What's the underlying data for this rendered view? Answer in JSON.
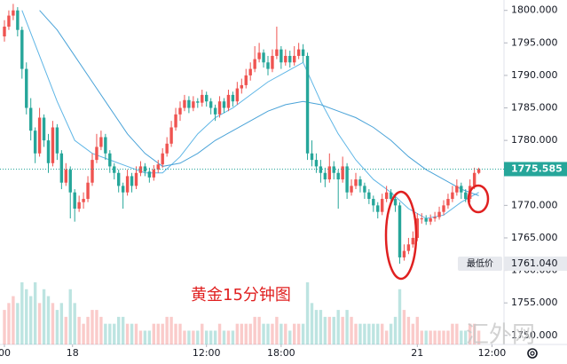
{
  "chart_data": {
    "type": "candlestick",
    "annotation": "黄金15分钟图",
    "watermark": "汇外网",
    "up_color": "#ef5350",
    "down_color": "#26a69a",
    "open": [
      1796.0,
      1797.5,
      1799.2,
      1800.0,
      1797.0,
      1791.0,
      1785.0,
      1781.5,
      1778.0,
      1783.5,
      1780.0,
      1776.5,
      1782.0,
      1778.0,
      1773.5,
      1775.5,
      1772.0,
      1769.5,
      1770.5,
      1771.0,
      1773.5,
      1777.0,
      1779.0,
      1780.5,
      1778.0,
      1776.0,
      1775.0,
      1773.0,
      1772.0,
      1774.5,
      1773.0,
      1775.0,
      1776.0,
      1775.2,
      1774.3,
      1775.5,
      1776.3,
      1778.0,
      1779.5,
      1782.0,
      1784.0,
      1785.0,
      1786.2,
      1785.0,
      1786.0,
      1785.8,
      1787.0,
      1786.0,
      1785.0,
      1784.0,
      1786.0,
      1785.0,
      1787.0,
      1786.0,
      1788.0,
      1788.5,
      1790.0,
      1791.0,
      1792.5,
      1793.5,
      1792.0,
      1791.0,
      1793.0,
      1794.0,
      1792.0,
      1793.0,
      1792.0,
      1793.0,
      1794.0,
      1793.0,
      1778.0,
      1777.0,
      1776.0,
      1775.0,
      1774.0,
      1776.0,
      1775.0,
      1774.0,
      1776.0,
      1772.0,
      1773.0,
      1774.0,
      1773.0,
      1772.0,
      1771.0,
      1770.0,
      1769.0,
      1771.0,
      1772.0,
      1771.0,
      1770.0,
      1762.0,
      1763.0,
      1764.0,
      1765.0,
      1768.0,
      1768.0,
      1767.5,
      1768.0,
      1768.2,
      1769.0,
      1770.0,
      1771.0,
      1772.0,
      1773.0,
      1772.0,
      1771.0,
      1773.0,
      1775.0
    ],
    "high": [
      1798.5,
      1800.0,
      1801.0,
      1800.5,
      1797.5,
      1792.0,
      1786.5,
      1782.0,
      1785.0,
      1784.0,
      1781.0,
      1783.0,
      1782.5,
      1778.5,
      1776.5,
      1776.0,
      1772.5,
      1771.5,
      1772.0,
      1774.5,
      1778.0,
      1781.0,
      1781.5,
      1781.0,
      1778.5,
      1776.5,
      1775.5,
      1773.5,
      1775.5,
      1775.0,
      1776.0,
      1776.8,
      1776.5,
      1775.8,
      1776.2,
      1777.0,
      1778.8,
      1780.5,
      1783.0,
      1785.0,
      1786.0,
      1787.0,
      1786.8,
      1786.8,
      1786.5,
      1787.8,
      1787.5,
      1786.5,
      1785.5,
      1786.8,
      1786.5,
      1787.8,
      1787.5,
      1789.0,
      1789.5,
      1791.0,
      1792.0,
      1794.5,
      1795.0,
      1794.0,
      1793.0,
      1794.0,
      1797.5,
      1794.5,
      1794.0,
      1793.8,
      1794.5,
      1795.0,
      1794.8,
      1793.5,
      1780.0,
      1778.0,
      1777.0,
      1775.8,
      1778.0,
      1776.8,
      1775.5,
      1777.5,
      1776.5,
      1774.0,
      1775.0,
      1774.5,
      1773.5,
      1772.5,
      1771.5,
      1770.5,
      1771.8,
      1773.0,
      1772.5,
      1771.5,
      1770.5,
      1764.0,
      1765.0,
      1766.0,
      1768.8,
      1768.8,
      1768.5,
      1768.6,
      1769.0,
      1769.8,
      1770.8,
      1771.8,
      1773.0,
      1774.0,
      1773.5,
      1772.5,
      1774.0,
      1775.8,
      1775.8
    ],
    "low": [
      1795.2,
      1797.0,
      1798.5,
      1796.0,
      1789.5,
      1784.0,
      1780.0,
      1776.5,
      1777.5,
      1779.0,
      1775.0,
      1776.0,
      1777.0,
      1772.5,
      1773.0,
      1768.0,
      1767.5,
      1769.0,
      1769.5,
      1770.5,
      1773.0,
      1776.5,
      1778.5,
      1777.0,
      1775.0,
      1774.0,
      1772.0,
      1769.5,
      1771.5,
      1772.0,
      1772.5,
      1774.5,
      1774.5,
      1773.5,
      1773.8,
      1775.0,
      1775.8,
      1777.5,
      1779.0,
      1781.5,
      1783.0,
      1784.5,
      1784.2,
      1784.5,
      1785.0,
      1785.2,
      1785.2,
      1784.0,
      1783.0,
      1783.5,
      1784.2,
      1784.5,
      1785.2,
      1785.5,
      1787.2,
      1788.0,
      1789.2,
      1790.5,
      1792.0,
      1791.2,
      1790.0,
      1790.5,
      1792.5,
      1791.0,
      1791.5,
      1791.2,
      1791.5,
      1792.5,
      1792.0,
      1777.0,
      1776.0,
      1775.0,
      1773.5,
      1772.8,
      1773.5,
      1774.0,
      1769.5,
      1773.5,
      1771.0,
      1771.5,
      1772.5,
      1772.0,
      1771.0,
      1770.2,
      1769.0,
      1768.0,
      1768.5,
      1770.5,
      1770.0,
      1769.0,
      1761.04,
      1761.5,
      1762.5,
      1763.5,
      1764.5,
      1767.2,
      1767.0,
      1767.0,
      1767.5,
      1767.8,
      1768.5,
      1769.5,
      1770.5,
      1771.5,
      1771.0,
      1770.5,
      1770.5,
      1772.5,
      1774.8
    ],
    "close": [
      1797.5,
      1799.2,
      1800.0,
      1797.0,
      1791.0,
      1785.0,
      1781.5,
      1778.0,
      1783.5,
      1780.0,
      1776.5,
      1782.0,
      1778.0,
      1773.5,
      1775.5,
      1772.0,
      1769.5,
      1770.5,
      1771.0,
      1773.5,
      1777.0,
      1779.0,
      1780.5,
      1778.0,
      1776.0,
      1775.0,
      1773.0,
      1772.0,
      1774.5,
      1773.0,
      1775.0,
      1776.0,
      1775.2,
      1774.3,
      1775.5,
      1776.3,
      1778.0,
      1779.5,
      1782.0,
      1784.0,
      1785.0,
      1786.2,
      1785.0,
      1786.0,
      1785.8,
      1787.0,
      1786.0,
      1785.0,
      1784.0,
      1786.0,
      1785.0,
      1787.0,
      1786.0,
      1788.0,
      1788.5,
      1790.0,
      1791.0,
      1792.5,
      1793.5,
      1792.0,
      1791.0,
      1793.0,
      1794.0,
      1792.0,
      1793.0,
      1792.0,
      1793.0,
      1794.0,
      1793.0,
      1778.0,
      1777.0,
      1776.0,
      1775.0,
      1774.0,
      1776.0,
      1775.0,
      1774.0,
      1776.0,
      1772.0,
      1773.0,
      1774.0,
      1773.0,
      1772.0,
      1771.0,
      1770.0,
      1769.0,
      1771.0,
      1772.0,
      1771.0,
      1770.0,
      1762.0,
      1763.0,
      1764.0,
      1765.0,
      1768.0,
      1768.0,
      1767.5,
      1768.0,
      1768.2,
      1769.0,
      1770.0,
      1771.0,
      1772.0,
      1773.0,
      1772.0,
      1771.0,
      1773.0,
      1775.0,
      1775.585
    ],
    "volume": [
      5,
      6,
      7,
      6,
      9,
      8,
      7,
      9,
      6,
      8,
      7,
      6,
      5,
      6,
      4,
      8,
      6,
      4,
      3,
      4,
      5,
      5,
      4,
      3,
      3,
      3,
      4,
      4,
      3,
      3,
      3,
      2,
      2,
      2,
      3,
      3,
      3,
      4,
      4,
      3,
      3,
      2,
      2,
      2,
      2,
      3,
      2,
      2,
      2,
      3,
      2,
      2,
      2,
      3,
      3,
      3,
      3,
      4,
      4,
      3,
      3,
      3,
      4,
      3,
      3,
      2,
      3,
      3,
      3,
      9,
      6,
      5,
      5,
      4,
      4,
      4,
      5,
      4,
      5,
      4,
      3,
      3,
      3,
      3,
      3,
      3,
      3,
      2,
      3,
      4,
      8,
      5,
      4,
      3,
      4,
      2,
      2,
      2,
      2,
      2,
      2,
      2,
      3,
      3,
      2,
      2,
      3,
      3,
      2
    ],
    "ma_series": [
      {
        "name": "MA fast",
        "color": "#5fb6e6",
        "x": [
          4,
          8,
          12,
          16,
          20,
          24,
          28,
          32,
          36,
          40,
          44,
          48,
          52,
          56,
          60,
          64,
          68,
          72,
          76,
          80,
          84,
          88,
          92,
          96,
          100,
          104,
          108
        ],
        "values": [
          1800,
          1793,
          1786,
          1780,
          1778,
          1777,
          1776,
          1775,
          1775,
          1777.5,
          1781,
          1783.5,
          1785,
          1787,
          1789,
          1790.5,
          1792,
          1786,
          1781,
          1777,
          1774,
          1772,
          1769.5,
          1768,
          1768.5,
          1770.5,
          1772
        ]
      },
      {
        "name": "MA slow",
        "color": "#4aa3d8",
        "x": [
          8,
          12,
          16,
          20,
          24,
          28,
          32,
          36,
          40,
          44,
          48,
          52,
          56,
          60,
          64,
          68,
          72,
          76,
          80,
          84,
          88,
          92,
          96,
          100,
          104,
          108
        ],
        "values": [
          1800,
          1797,
          1793,
          1789,
          1785,
          1781,
          1778,
          1776,
          1776.5,
          1778,
          1780,
          1781.5,
          1783,
          1784.5,
          1785.5,
          1786,
          1785.5,
          1784.5,
          1783.5,
          1782,
          1780,
          1777.5,
          1775.5,
          1774,
          1772.5,
          1771.5
        ]
      }
    ],
    "ylim": [
      1745.6,
      1801.6
    ],
    "yticks": [
      {
        "value": 1750,
        "label": "1750.000"
      },
      {
        "value": 1755,
        "label": "1755.000"
      },
      {
        "value": 1760,
        "label": "1760.000"
      },
      {
        "value": 1765,
        "label": "1765.000"
      },
      {
        "value": 1770,
        "label": "1770.000"
      },
      {
        "value": 1775,
        "label": "1775.000"
      },
      {
        "value": 1780,
        "label": "1780.000"
      },
      {
        "value": 1785,
        "label": "1785.000"
      },
      {
        "value": 1790,
        "label": "1790.000"
      },
      {
        "value": 1795,
        "label": "1795.000"
      },
      {
        "value": 1800,
        "label": "1800.000"
      }
    ],
    "xticks": [
      {
        "value": 0,
        "label": "00"
      },
      {
        "value": 15.5,
        "label": "18"
      },
      {
        "value": 46,
        "label": "12:00"
      },
      {
        "value": 63,
        "label": "18:00"
      },
      {
        "value": 94,
        "label": "21"
      },
      {
        "value": 111,
        "label": "12:00"
      }
    ],
    "low_marker": {
      "label": "最低价",
      "value": 1761.04,
      "value_label": "1761.040"
    }
  }
}
